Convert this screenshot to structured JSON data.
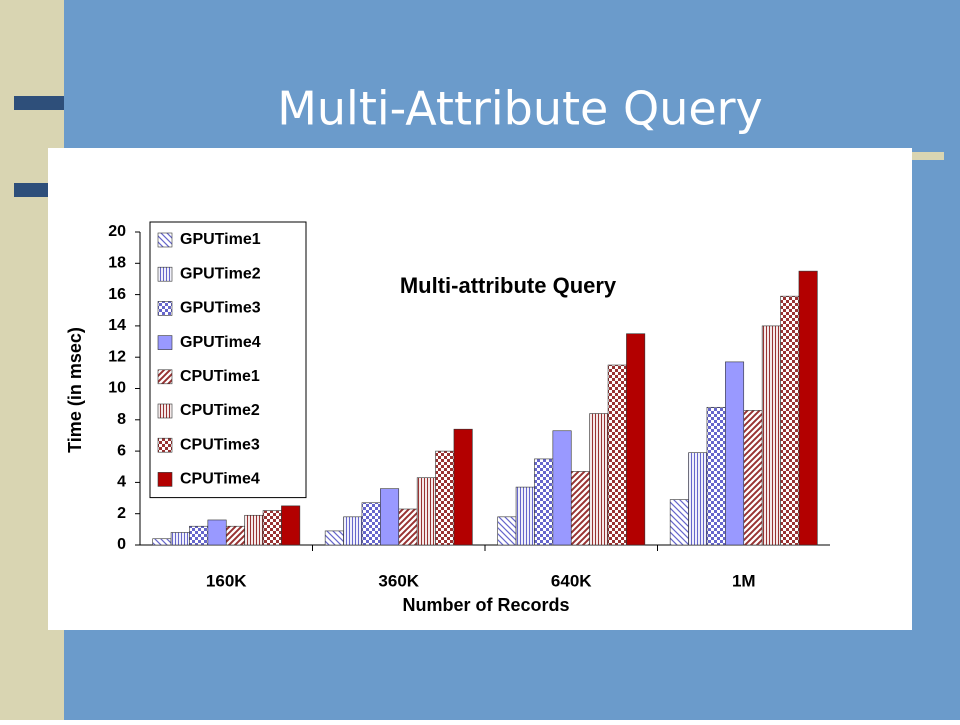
{
  "slide_title": "Multi-Attribute Query",
  "chart_data": {
    "type": "bar",
    "title": "Multi-attribute Query",
    "x_label": "Number of Records",
    "y_label": "Time (in msec)",
    "categories": [
      "160K",
      "360K",
      "640K",
      "1M"
    ],
    "series": [
      {
        "name": "GPUTime1",
        "color": "#6666cc",
        "pattern": "diagonal",
        "values": [
          0.4,
          0.9,
          1.8,
          2.9
        ]
      },
      {
        "name": "GPUTime2",
        "color": "#6666cc",
        "pattern": "vertical",
        "values": [
          0.8,
          1.8,
          3.7,
          5.9
        ]
      },
      {
        "name": "GPUTime3",
        "color": "#6666cc",
        "pattern": "checker",
        "values": [
          1.2,
          2.7,
          5.5,
          8.8
        ]
      },
      {
        "name": "GPUTime4",
        "color": "#9999ff",
        "pattern": "solid",
        "values": [
          1.6,
          3.6,
          7.3,
          11.7
        ]
      },
      {
        "name": "CPUTime1",
        "color": "#993333",
        "pattern": "diagonal-reverse",
        "values": [
          1.2,
          2.3,
          4.7,
          8.6
        ]
      },
      {
        "name": "CPUTime2",
        "color": "#993333",
        "pattern": "vertical",
        "values": [
          1.9,
          4.3,
          8.4,
          14.0
        ]
      },
      {
        "name": "CPUTime3",
        "color": "#993333",
        "pattern": "checker",
        "values": [
          2.2,
          6.0,
          11.5,
          15.9
        ]
      },
      {
        "name": "CPUTime4",
        "color": "#b30000",
        "pattern": "solid",
        "values": [
          2.5,
          7.4,
          13.5,
          17.5
        ]
      }
    ],
    "ylim": [
      0,
      20
    ],
    "yticks": [
      0,
      2,
      4,
      6,
      8,
      10,
      12,
      14,
      16,
      18,
      20
    ],
    "legend": "upper left"
  }
}
